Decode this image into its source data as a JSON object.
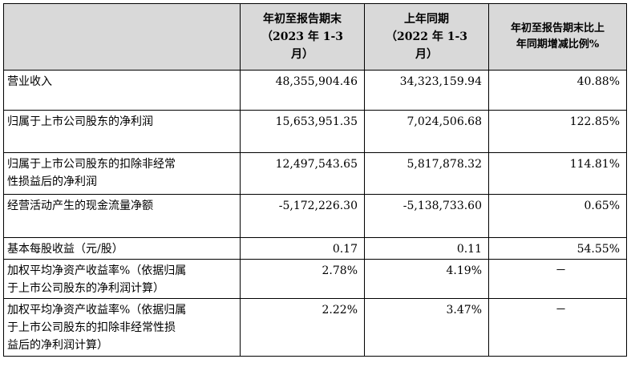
{
  "table": {
    "headers": [
      "",
      "年初至报告期末（2023 年 1-3 月）",
      "上年同期（2022 年 1-3 月）",
      "年初至报告期末比上年同期增减比例%"
    ],
    "header_lines": {
      "col1": [
        "年初至报告期末",
        "（2023 年 1-3",
        "月）"
      ],
      "col2": [
        "上年同期",
        "（2022 年 1-3",
        "月）"
      ],
      "col3": [
        "年初至报告期末比上",
        "年同期增减比例%"
      ]
    },
    "rows": [
      {
        "label_lines": [
          "营业收入"
        ],
        "current": "48,355,904.46",
        "prior": "34,323,159.94",
        "change": "40.88%"
      },
      {
        "label_lines": [
          "归属于上市公司股东的净利润"
        ],
        "current": "15,653,951.35",
        "prior": "7,024,506.68",
        "change": "122.85%"
      },
      {
        "label_lines": [
          "归属于上市公司股东的扣除非经常",
          "性损益后的净利润"
        ],
        "current": "12,497,543.65",
        "prior": "5,817,878.32",
        "change": "114.81%"
      },
      {
        "label_lines": [
          "经营活动产生的现金流量净额"
        ],
        "current": "-5,172,226.30",
        "prior": "-5,138,733.60",
        "change": "0.65%"
      },
      {
        "label_lines": [
          "基本每股收益（元/股）"
        ],
        "current": "0.17",
        "prior": "0.11",
        "change": "54.55%"
      },
      {
        "label_lines": [
          "加权平均净资产收益率%（依据归属",
          "于上市公司股东的净利润计算）"
        ],
        "current": "2.78%",
        "prior": "4.19%",
        "change": "－"
      },
      {
        "label_lines": [
          "加权平均净资产收益率%（依据归属",
          "于上市公司股东的扣除非经常性损",
          "益后的净利润计算）"
        ],
        "current": "2.22%",
        "prior": "3.47%",
        "change": "－"
      }
    ]
  }
}
